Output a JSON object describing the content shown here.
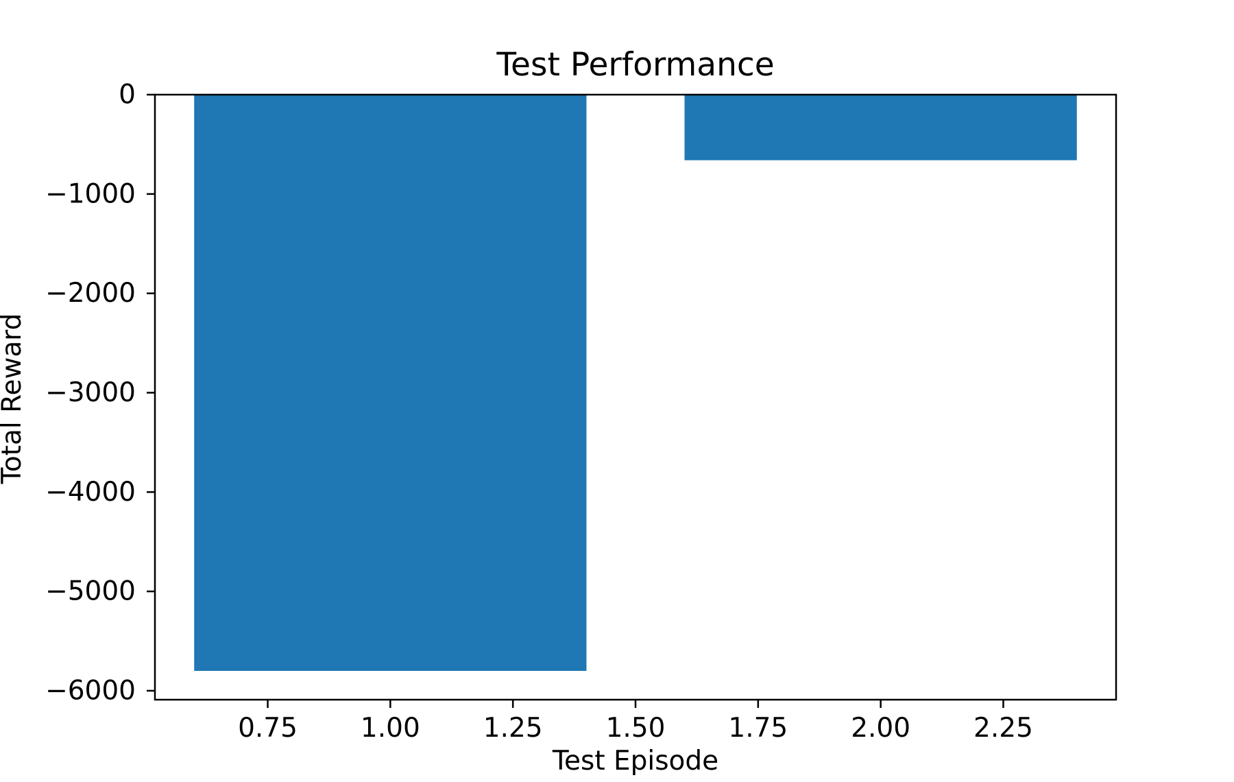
{
  "chart_data": {
    "type": "bar",
    "title": "Test Performance",
    "xlabel": "Test Episode",
    "ylabel": "Total Reward",
    "x": [
      1,
      2
    ],
    "values": [
      -5800,
      -660
    ],
    "bar_width": 0.8,
    "xlim": [
      0.52,
      2.48
    ],
    "ylim": [
      -6090,
      0
    ],
    "xticks": [
      0.75,
      1.0,
      1.25,
      1.5,
      1.75,
      2.0,
      2.25
    ],
    "xtick_labels": [
      "0.75",
      "1.00",
      "1.25",
      "1.50",
      "1.75",
      "2.00",
      "2.25"
    ],
    "yticks": [
      0,
      -1000,
      -2000,
      -3000,
      -4000,
      -5000,
      -6000
    ],
    "ytick_labels": [
      "0",
      "−1000",
      "−2000",
      "−3000",
      "−4000",
      "−5000",
      "−6000"
    ],
    "bar_color": "#1f77b4",
    "grid": false,
    "legend": "none"
  }
}
